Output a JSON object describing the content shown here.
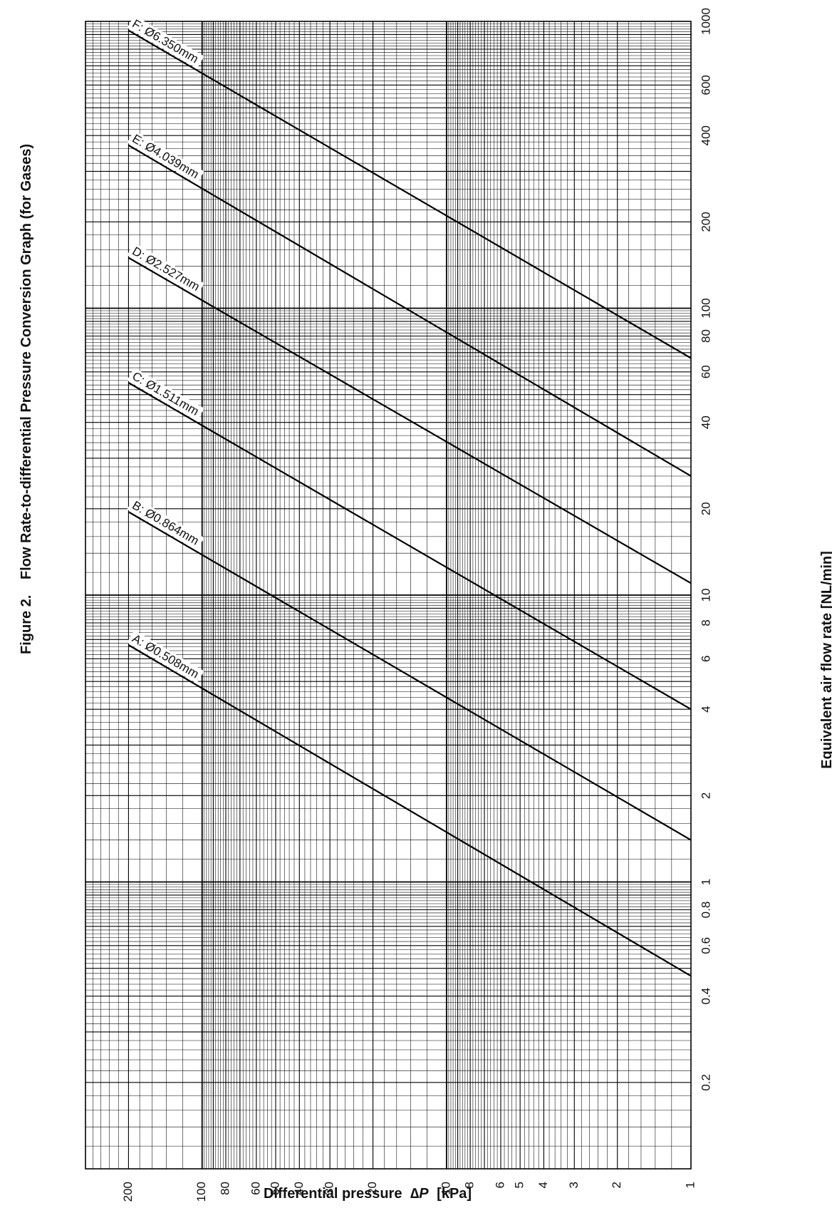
{
  "chart_data": {
    "type": "line",
    "figure_label": "Figure 2.",
    "title": "Flow Rate-to-differential Pressure Conversion Graph (for Gases)",
    "xlabel": "Equivalent air flow rate [NL/min]",
    "ylabel_prefix": "Differential pressure",
    "ylabel_symbol": "∆P",
    "ylabel_unit": "[kPa]",
    "x_scale": "log",
    "y_scale": "log",
    "xlim": [
      0.1,
      1000
    ],
    "ylim": [
      1,
      300
    ],
    "x_ticks": [
      0.2,
      0.4,
      0.6,
      0.8,
      1,
      2,
      4,
      6,
      8,
      10,
      20,
      40,
      60,
      80,
      100,
      200,
      400,
      600,
      1000
    ],
    "x_tick_labels": [
      "0.2",
      "0.4",
      "0.6",
      "0.8",
      "1",
      "2",
      "4",
      "6",
      "8",
      "10",
      "20",
      "40",
      "60",
      "80",
      "100",
      "200",
      "400",
      "600",
      "1000"
    ],
    "y_ticks": [
      1,
      2,
      3,
      4,
      5,
      6,
      8,
      10,
      20,
      30,
      40,
      50,
      60,
      80,
      100,
      200
    ],
    "y_tick_labels": [
      "1",
      "2",
      "3",
      "4",
      "5",
      "6",
      "8",
      "10",
      "20",
      "30",
      "40",
      "50",
      "60",
      "80",
      "100",
      "200"
    ],
    "grid": true,
    "orientation": "rotated 90° counter-clockwise on the page",
    "series": [
      {
        "name": "A: Ø0.508mm",
        "x": [
          0.47,
          6.7
        ],
        "y": [
          1,
          200
        ]
      },
      {
        "name": "B: Ø0.864mm",
        "x": [
          1.4,
          19.5
        ],
        "y": [
          1,
          200
        ]
      },
      {
        "name": "C: Ø1.511mm",
        "x": [
          4.0,
          55
        ],
        "y": [
          1,
          200
        ]
      },
      {
        "name": "D: Ø2.527mm",
        "x": [
          11,
          150
        ],
        "y": [
          1,
          200
        ]
      },
      {
        "name": "E: Ø4.039mm",
        "x": [
          26,
          370
        ],
        "y": [
          1,
          200
        ]
      },
      {
        "name": "F: Ø6.350mm",
        "x": [
          67,
          930
        ],
        "y": [
          1,
          200
        ]
      }
    ]
  }
}
